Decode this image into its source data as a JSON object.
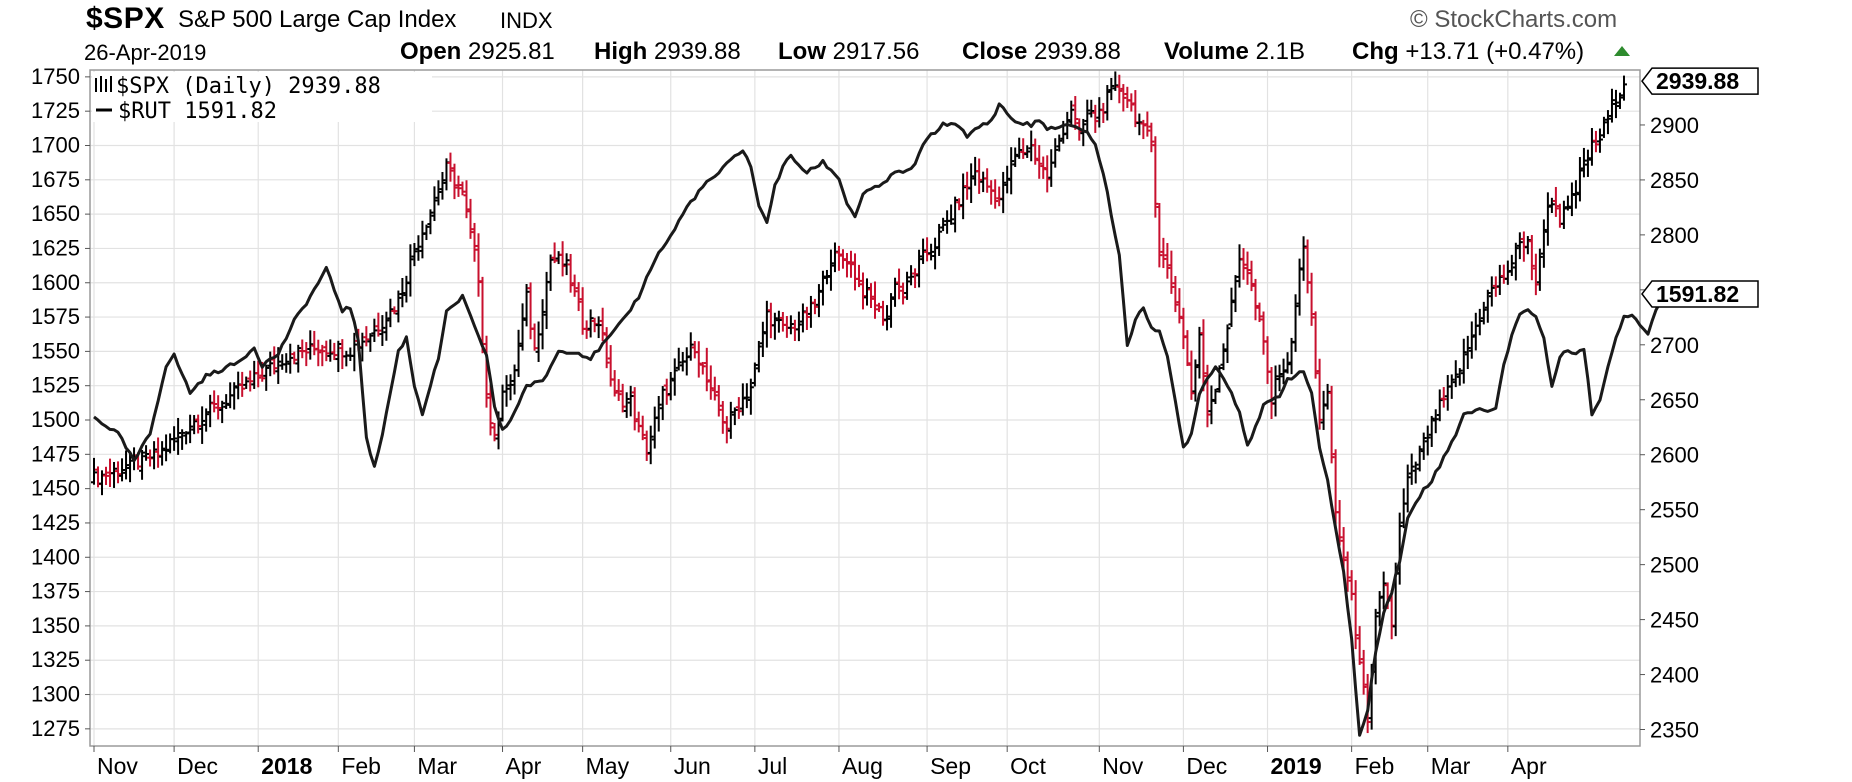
{
  "header": {
    "symbol": "$SPX",
    "name": "S&P 500 Large Cap Index",
    "exchange": "INDX",
    "copyright": "© StockCharts.com",
    "date": "26-Apr-2019",
    "open_label": "Open",
    "open_value": "2925.81",
    "high_label": "High",
    "high_value": "2939.88",
    "low_label": "Low",
    "low_value": "2917.56",
    "close_label": "Close",
    "close_value": "2939.88",
    "volume_label": "Volume",
    "volume_value": "2.1B",
    "chg_label": "Chg",
    "chg_value": "+13.71 (+0.47%)",
    "up_color": "#2e8b2e"
  },
  "chart_data": {
    "type": "line",
    "title": "$SPX S&P 500 Large Cap Index INDX",
    "x": [
      "Nov",
      "Dec",
      "2018",
      "Feb",
      "Mar",
      "Apr",
      "May",
      "Jun",
      "Jul",
      "Aug",
      "Sep",
      "Oct",
      "Nov",
      "Dec",
      "2019",
      "Feb",
      "Mar",
      "Apr"
    ],
    "x_bold": [
      false,
      false,
      true,
      false,
      false,
      false,
      false,
      false,
      false,
      false,
      false,
      false,
      false,
      false,
      true,
      false,
      false,
      false
    ],
    "y_left": {
      "label": "$RUT",
      "ylim": [
        1262.5,
        1755
      ],
      "ticks": [
        "1750",
        "1725",
        "1700",
        "1675",
        "1650",
        "1625",
        "1600",
        "1575",
        "1550",
        "1525",
        "1500",
        "1475",
        "1450",
        "1425",
        "1400",
        "1375",
        "1350",
        "1325",
        "1300",
        "1275"
      ]
    },
    "y_right": {
      "label": "$SPX",
      "ylim": [
        2335,
        2950
      ],
      "ticks": [
        "2900",
        "2850",
        "2800",
        "2750",
        "2700",
        "2650",
        "2600",
        "2550",
        "2500",
        "2450",
        "2400",
        "2350"
      ]
    },
    "grid": true,
    "legend_position": "top-left",
    "legend": [
      {
        "label": "$SPX (Daily) 2939.88",
        "style": "ohlc"
      },
      {
        "label": "$RUT 1591.82",
        "style": "line"
      }
    ],
    "last_value_tags": {
      "spx": "2939.88",
      "rut": "1591.82"
    },
    "series": [
      {
        "name": "$SPX (Daily)",
        "style": "ohlc",
        "axis": "right",
        "up_color": "#000000",
        "down_color": "#c8102e",
        "points": [
          [
            0,
            2578
          ],
          [
            8,
            2590
          ],
          [
            16,
            2600
          ],
          [
            24,
            2628
          ],
          [
            32,
            2648
          ],
          [
            40,
            2668
          ],
          [
            48,
            2690
          ],
          [
            56,
            2697
          ],
          [
            64,
            2696
          ],
          [
            70,
            2713
          ],
          [
            76,
            2740
          ],
          [
            80,
            2786
          ],
          [
            84,
            2822
          ],
          [
            88,
            2860
          ],
          [
            92,
            2836
          ],
          [
            96,
            2762
          ],
          [
            98,
            2652
          ],
          [
            100,
            2612
          ],
          [
            102,
            2662
          ],
          [
            104,
            2658
          ],
          [
            108,
            2742
          ],
          [
            110,
            2695
          ],
          [
            114,
            2778
          ],
          [
            116,
            2776
          ],
          [
            118,
            2770
          ],
          [
            122,
            2720
          ],
          [
            126,
            2722
          ],
          [
            130,
            2652
          ],
          [
            134,
            2649
          ],
          [
            136,
            2622
          ],
          [
            138,
            2605
          ],
          [
            142,
            2654
          ],
          [
            146,
            2678
          ],
          [
            150,
            2700
          ],
          [
            154,
            2655
          ],
          [
            158,
            2626
          ],
          [
            160,
            2640
          ],
          [
            164,
            2662
          ],
          [
            168,
            2728
          ],
          [
            172,
            2714
          ],
          [
            176,
            2720
          ],
          [
            180,
            2735
          ],
          [
            184,
            2780
          ],
          [
            186,
            2778
          ],
          [
            188,
            2779
          ],
          [
            192,
            2750
          ],
          [
            196,
            2730
          ],
          [
            198,
            2724
          ],
          [
            200,
            2760
          ],
          [
            202,
            2745
          ],
          [
            206,
            2775
          ],
          [
            210,
            2792
          ],
          [
            214,
            2818
          ],
          [
            218,
            2845
          ],
          [
            220,
            2858
          ],
          [
            222,
            2848
          ],
          [
            226,
            2833
          ],
          [
            230,
            2872
          ],
          [
            234,
            2880
          ],
          [
            238,
            2852
          ],
          [
            242,
            2897
          ],
          [
            244,
            2916
          ],
          [
            246,
            2888
          ],
          [
            248,
            2912
          ],
          [
            250,
            2906
          ],
          [
            254,
            2929
          ],
          [
            256,
            2933
          ],
          [
            258,
            2925
          ],
          [
            262,
            2893
          ],
          [
            264,
            2885
          ],
          [
            266,
            2785
          ],
          [
            268,
            2768
          ],
          [
            270,
            2740
          ],
          [
            272,
            2710
          ],
          [
            274,
            2656
          ],
          [
            276,
            2705
          ],
          [
            278,
            2640
          ],
          [
            280,
            2663
          ],
          [
            284,
            2735
          ],
          [
            286,
            2780
          ],
          [
            288,
            2767
          ],
          [
            290,
            2735
          ],
          [
            292,
            2700
          ],
          [
            294,
            2649
          ],
          [
            296,
            2680
          ],
          [
            298,
            2677
          ],
          [
            300,
            2738
          ],
          [
            302,
            2790
          ],
          [
            304,
            2722
          ],
          [
            306,
            2634
          ],
          [
            308,
            2651
          ],
          [
            310,
            2546
          ],
          [
            312,
            2506
          ],
          [
            314,
            2467
          ],
          [
            316,
            2416
          ],
          [
            318,
            2351
          ],
          [
            320,
            2447
          ],
          [
            322,
            2485
          ],
          [
            324,
            2447
          ],
          [
            326,
            2532
          ],
          [
            328,
            2575
          ],
          [
            332,
            2610
          ],
          [
            336,
            2643
          ],
          [
            340,
            2670
          ],
          [
            344,
            2707
          ],
          [
            348,
            2745
          ],
          [
            352,
            2762
          ],
          [
            354,
            2775
          ],
          [
            356,
            2790
          ],
          [
            358,
            2797
          ],
          [
            360,
            2750
          ],
          [
            362,
            2810
          ],
          [
            364,
            2833
          ],
          [
            366,
            2815
          ],
          [
            368,
            2822
          ],
          [
            370,
            2840
          ],
          [
            372,
            2866
          ],
          [
            374,
            2879
          ],
          [
            376,
            2888
          ],
          [
            378,
            2906
          ],
          [
            380,
            2927
          ],
          [
            382,
            2939.88
          ]
        ]
      },
      {
        "name": "$RUT",
        "style": "line",
        "axis": "left",
        "color": "#1a1a1a",
        "points": [
          [
            0,
            1502
          ],
          [
            6,
            1490
          ],
          [
            10,
            1470
          ],
          [
            14,
            1490
          ],
          [
            18,
            1540
          ],
          [
            20,
            1547
          ],
          [
            24,
            1520
          ],
          [
            28,
            1532
          ],
          [
            32,
            1537
          ],
          [
            36,
            1542
          ],
          [
            40,
            1553
          ],
          [
            42,
            1540
          ],
          [
            46,
            1548
          ],
          [
            50,
            1572
          ],
          [
            54,
            1590
          ],
          [
            58,
            1610
          ],
          [
            62,
            1580
          ],
          [
            64,
            1582
          ],
          [
            66,
            1558
          ],
          [
            68,
            1488
          ],
          [
            70,
            1465
          ],
          [
            72,
            1490
          ],
          [
            76,
            1550
          ],
          [
            78,
            1560
          ],
          [
            80,
            1525
          ],
          [
            82,
            1505
          ],
          [
            86,
            1545
          ],
          [
            88,
            1578
          ],
          [
            92,
            1590
          ],
          [
            96,
            1560
          ],
          [
            98,
            1548
          ],
          [
            100,
            1510
          ],
          [
            102,
            1492
          ],
          [
            104,
            1500
          ],
          [
            108,
            1525
          ],
          [
            112,
            1528
          ],
          [
            116,
            1550
          ],
          [
            120,
            1550
          ],
          [
            124,
            1545
          ],
          [
            128,
            1558
          ],
          [
            132,
            1572
          ],
          [
            136,
            1590
          ],
          [
            140,
            1617
          ],
          [
            144,
            1634
          ],
          [
            148,
            1655
          ],
          [
            152,
            1670
          ],
          [
            156,
            1680
          ],
          [
            160,
            1692
          ],
          [
            162,
            1697
          ],
          [
            164,
            1685
          ],
          [
            166,
            1655
          ],
          [
            168,
            1645
          ],
          [
            170,
            1670
          ],
          [
            172,
            1685
          ],
          [
            174,
            1692
          ],
          [
            178,
            1680
          ],
          [
            182,
            1688
          ],
          [
            186,
            1676
          ],
          [
            188,
            1658
          ],
          [
            190,
            1648
          ],
          [
            192,
            1665
          ],
          [
            196,
            1670
          ],
          [
            200,
            1680
          ],
          [
            204,
            1682
          ],
          [
            208,
            1705
          ],
          [
            212,
            1715
          ],
          [
            214,
            1716
          ],
          [
            216,
            1715
          ],
          [
            218,
            1705
          ],
          [
            220,
            1712
          ],
          [
            224,
            1718
          ],
          [
            226,
            1730
          ],
          [
            230,
            1717
          ],
          [
            234,
            1715
          ],
          [
            236,
            1718
          ],
          [
            238,
            1713
          ],
          [
            240,
            1712
          ],
          [
            244,
            1715
          ],
          [
            248,
            1710
          ],
          [
            250,
            1700
          ],
          [
            252,
            1680
          ],
          [
            254,
            1650
          ],
          [
            256,
            1620
          ],
          [
            258,
            1555
          ],
          [
            260,
            1572
          ],
          [
            262,
            1582
          ],
          [
            264,
            1568
          ],
          [
            266,
            1565
          ],
          [
            268,
            1545
          ],
          [
            270,
            1513
          ],
          [
            272,
            1480
          ],
          [
            274,
            1490
          ],
          [
            276,
            1520
          ],
          [
            278,
            1530
          ],
          [
            280,
            1540
          ],
          [
            284,
            1520
          ],
          [
            286,
            1506
          ],
          [
            288,
            1482
          ],
          [
            290,
            1494
          ],
          [
            292,
            1510
          ],
          [
            296,
            1518
          ],
          [
            298,
            1530
          ],
          [
            302,
            1535
          ],
          [
            304,
            1520
          ],
          [
            306,
            1480
          ],
          [
            308,
            1455
          ],
          [
            310,
            1420
          ],
          [
            312,
            1390
          ],
          [
            314,
            1340
          ],
          [
            316,
            1270
          ],
          [
            318,
            1288
          ],
          [
            320,
            1332
          ],
          [
            322,
            1360
          ],
          [
            324,
            1375
          ],
          [
            326,
            1398
          ],
          [
            328,
            1428
          ],
          [
            332,
            1450
          ],
          [
            334,
            1456
          ],
          [
            338,
            1478
          ],
          [
            340,
            1490
          ],
          [
            342,
            1505
          ],
          [
            346,
            1507
          ],
          [
            350,
            1508
          ],
          [
            352,
            1540
          ],
          [
            354,
            1562
          ],
          [
            356,
            1578
          ],
          [
            358,
            1580
          ],
          [
            360,
            1575
          ],
          [
            362,
            1560
          ],
          [
            364,
            1523
          ],
          [
            366,
            1547
          ],
          [
            368,
            1552
          ],
          [
            370,
            1548
          ],
          [
            372,
            1552
          ],
          [
            374,
            1505
          ],
          [
            376,
            1514
          ],
          [
            378,
            1540
          ],
          [
            380,
            1560
          ],
          [
            382,
            1576
          ],
          [
            384,
            1577
          ],
          [
            386,
            1570
          ],
          [
            388,
            1563
          ],
          [
            390,
            1580
          ],
          [
            392,
            1591.82
          ]
        ]
      }
    ]
  }
}
